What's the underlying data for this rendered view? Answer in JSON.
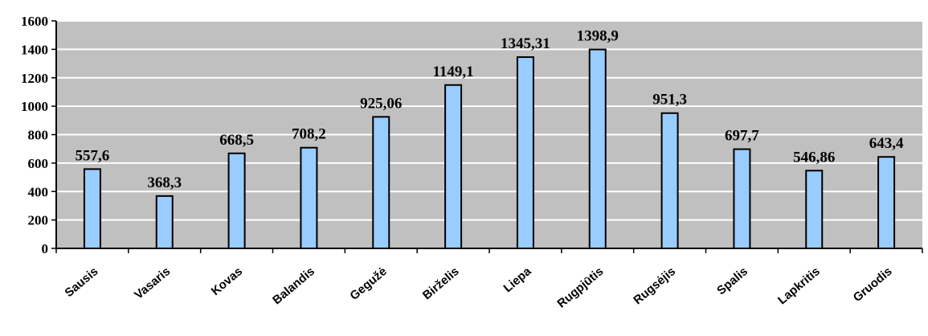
{
  "chart_data": {
    "type": "bar",
    "categories": [
      "Sausis",
      "Vasaris",
      "Kovas",
      "Balandis",
      "Gegužė",
      "Birželis",
      "Liepa",
      "Rugpjūtis",
      "Rugsėjis",
      "Spalis",
      "Lapkritis",
      "Gruodis"
    ],
    "values": [
      557.6,
      368.3,
      668.5,
      708.2,
      925.06,
      1149.1,
      1345.31,
      1398.9,
      951.3,
      697.7,
      546.86,
      643.4
    ],
    "value_labels": [
      "557,6",
      "368,3",
      "668,5",
      "708,2",
      "925,06",
      "1149,1",
      "1345,31",
      "1398,9",
      "951,3",
      "697,7",
      "546,86",
      "643,4"
    ],
    "yticks": [
      "0",
      "200",
      "400",
      "600",
      "800",
      "1000",
      "1200",
      "1400",
      "1600"
    ],
    "ylim": [
      0,
      1600
    ],
    "title": "",
    "xlabel": "",
    "ylabel": "",
    "grid": true,
    "legend": "none",
    "colors": {
      "plot_background": "#c0c0c0",
      "bar_fill": "#99ccff",
      "bar_stroke": "#000000",
      "gridline": "#ffffff"
    }
  }
}
